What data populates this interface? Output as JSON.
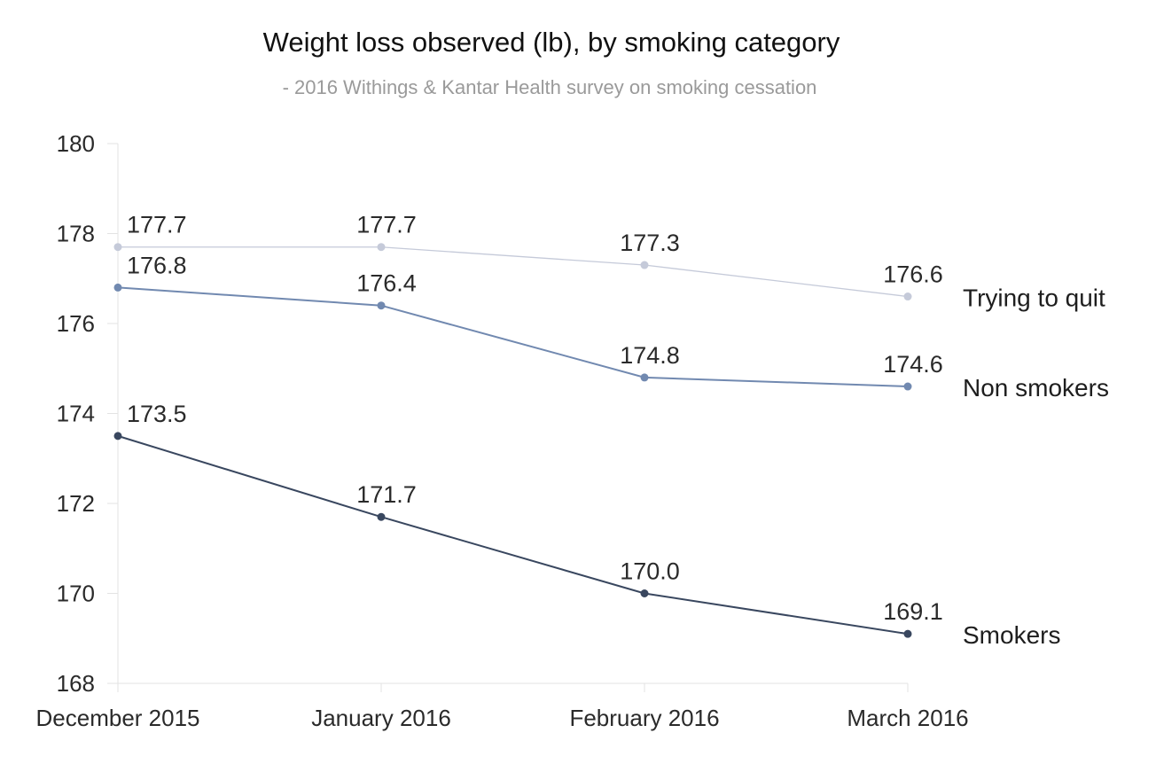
{
  "chart_data": {
    "type": "line",
    "title": "Weight loss observed (lb), by smoking category",
    "subtitle": "- 2016 Withings & Kantar Health survey on smoking cessation",
    "xlabel": "",
    "ylabel": "",
    "categories": [
      "December 2015",
      "January 2016",
      "February 2016",
      "March 2016"
    ],
    "ylim": [
      168,
      180
    ],
    "yticks": [
      "168",
      "170",
      "172",
      "174",
      "176",
      "178",
      "180"
    ],
    "grid": false,
    "legend": "labels at right end of each line",
    "series": [
      {
        "name": "Trying to quit",
        "color": "#c5cad9",
        "values": [
          177.7,
          177.7,
          177.3,
          176.6
        ],
        "labels": [
          "177.7",
          "177.7",
          "177.3",
          "176.6"
        ]
      },
      {
        "name": "Non smokers",
        "color": "#7189b0",
        "values": [
          176.8,
          176.4,
          174.8,
          174.6
        ],
        "labels": [
          "176.8",
          "176.4",
          "174.8",
          "174.6"
        ]
      },
      {
        "name": "Smokers",
        "color": "#39475f",
        "values": [
          173.5,
          171.7,
          170.0,
          169.1
        ],
        "labels": [
          "173.5",
          "171.7",
          "170.0",
          "169.1"
        ]
      }
    ]
  }
}
